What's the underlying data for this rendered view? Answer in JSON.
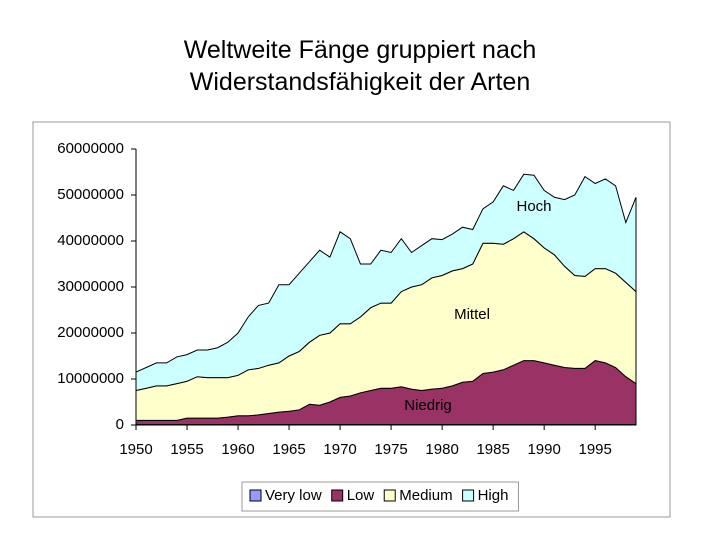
{
  "chart_data": {
    "type": "stacked-area",
    "title": "Weltweite Fänge gruppiert nach Widerstandsfähigkeit der Arten",
    "x": [
      1950,
      1951,
      1952,
      1953,
      1954,
      1955,
      1956,
      1957,
      1958,
      1959,
      1960,
      1961,
      1962,
      1963,
      1964,
      1965,
      1966,
      1967,
      1968,
      1969,
      1970,
      1971,
      1972,
      1973,
      1974,
      1975,
      1976,
      1977,
      1978,
      1979,
      1980,
      1981,
      1982,
      1983,
      1984,
      1985,
      1986,
      1987,
      1988,
      1989,
      1990,
      1991,
      1992,
      1993,
      1994,
      1995,
      1996,
      1997,
      1998,
      1999
    ],
    "xlim": [
      1950,
      1999
    ],
    "xticks": [
      1950,
      1955,
      1960,
      1965,
      1970,
      1975,
      1980,
      1985,
      1990,
      1995
    ],
    "ylim": [
      0,
      60000000
    ],
    "yticks": [
      0,
      10000000,
      20000000,
      30000000,
      40000000,
      50000000,
      60000000
    ],
    "grid": false,
    "legend": "bottom",
    "series": [
      {
        "name": "Very low",
        "color": "#9999ff",
        "values": [
          100000,
          100000,
          100000,
          100000,
          100000,
          100000,
          100000,
          100000,
          100000,
          100000,
          100000,
          100000,
          100000,
          100000,
          100000,
          100000,
          100000,
          100000,
          100000,
          100000,
          100000,
          100000,
          100000,
          100000,
          100000,
          100000,
          100000,
          100000,
          100000,
          100000,
          100000,
          100000,
          100000,
          100000,
          100000,
          100000,
          100000,
          100000,
          100000,
          100000,
          100000,
          100000,
          100000,
          100000,
          100000,
          100000,
          100000,
          100000,
          100000,
          100000
        ]
      },
      {
        "name": "Low",
        "color": "#993366",
        "values": [
          900000,
          900000,
          900000,
          900000,
          900000,
          1400000,
          1400000,
          1400000,
          1400000,
          1600000,
          1900000,
          1900000,
          2100000,
          2400000,
          2700000,
          2900000,
          3200000,
          4400000,
          4200000,
          4900000,
          5900000,
          6200000,
          6900000,
          7400000,
          7900000,
          7900000,
          8200000,
          7700000,
          7400000,
          7700000,
          7900000,
          8400000,
          9200000,
          9400000,
          11100000,
          11400000,
          11900000,
          12900000,
          13900000,
          13900000,
          13400000,
          12900000,
          12400000,
          12200000,
          12200000,
          13900000,
          13400000,
          12400000,
          10400000,
          8900000
        ]
      },
      {
        "name": "Medium",
        "color": "#ffffcc",
        "values": [
          6500000,
          7000000,
          7500000,
          7500000,
          8000000,
          8000000,
          9000000,
          8800000,
          8800000,
          8600000,
          8800000,
          10000000,
          10100000,
          10500000,
          10700000,
          12000000,
          12700000,
          13500000,
          15200000,
          15000000,
          16000000,
          15700000,
          16500000,
          18000000,
          18500000,
          18500000,
          20700000,
          22200000,
          23000000,
          24200000,
          24500000,
          25000000,
          24700000,
          25500000,
          28300000,
          28000000,
          27300000,
          27500000,
          28000000,
          26500000,
          25000000,
          24000000,
          22000000,
          20200000,
          20000000,
          20000000,
          20500000,
          20500000,
          20500000,
          20000000
        ]
      },
      {
        "name": "High",
        "color": "#ccffff",
        "values": [
          4000000,
          4500000,
          5000000,
          5000000,
          5800000,
          5800000,
          5800000,
          6000000,
          6500000,
          7700000,
          9200000,
          11500000,
          13700000,
          13500000,
          17000000,
          15500000,
          17000000,
          17500000,
          18500000,
          16500000,
          20000000,
          18500000,
          11500000,
          9500000,
          11500000,
          11000000,
          11500000,
          7500000,
          8500000,
          8500000,
          7800000,
          8000000,
          9000000,
          7500000,
          7500000,
          9000000,
          12700000,
          10500000,
          12500000,
          13800000,
          12500000,
          12500000,
          14500000,
          17500000,
          21700000,
          18500000,
          19500000,
          19000000,
          13000000,
          20500000
        ]
      }
    ],
    "annotations": [
      "Hoch",
      "Mittel",
      "Niedrig"
    ]
  }
}
